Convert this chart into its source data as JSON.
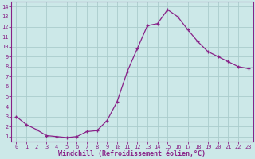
{
  "x": [
    0,
    1,
    2,
    3,
    4,
    5,
    6,
    7,
    8,
    9,
    10,
    11,
    12,
    13,
    14,
    15,
    16,
    17,
    18,
    19,
    20,
    21,
    22,
    23
  ],
  "y": [
    3.0,
    2.2,
    1.7,
    1.1,
    1.0,
    0.9,
    1.0,
    1.5,
    1.6,
    2.6,
    4.5,
    7.5,
    9.8,
    12.1,
    12.3,
    13.7,
    13.0,
    11.7,
    10.5,
    9.5,
    9.0,
    8.5,
    8.0,
    7.8
  ],
  "line_color": "#882288",
  "marker": "+",
  "marker_color": "#882288",
  "bg_color": "#cce8e8",
  "grid_color": "#aacccc",
  "xlabel": "Windchill (Refroidissement éolien,°C)",
  "xlabel_color": "#882288",
  "tick_color": "#882288",
  "axis_color": "#882288",
  "xlim": [
    -0.5,
    23.5
  ],
  "ylim": [
    0.5,
    14.5
  ],
  "yticks": [
    1,
    2,
    3,
    4,
    5,
    6,
    7,
    8,
    9,
    10,
    11,
    12,
    13,
    14
  ],
  "xticks": [
    0,
    1,
    2,
    3,
    4,
    5,
    6,
    7,
    8,
    9,
    10,
    11,
    12,
    13,
    14,
    15,
    16,
    17,
    18,
    19,
    20,
    21,
    22,
    23
  ],
  "linewidth": 0.9,
  "markersize": 3.5,
  "tick_fontsize": 5.0,
  "xlabel_fontsize": 6.0
}
